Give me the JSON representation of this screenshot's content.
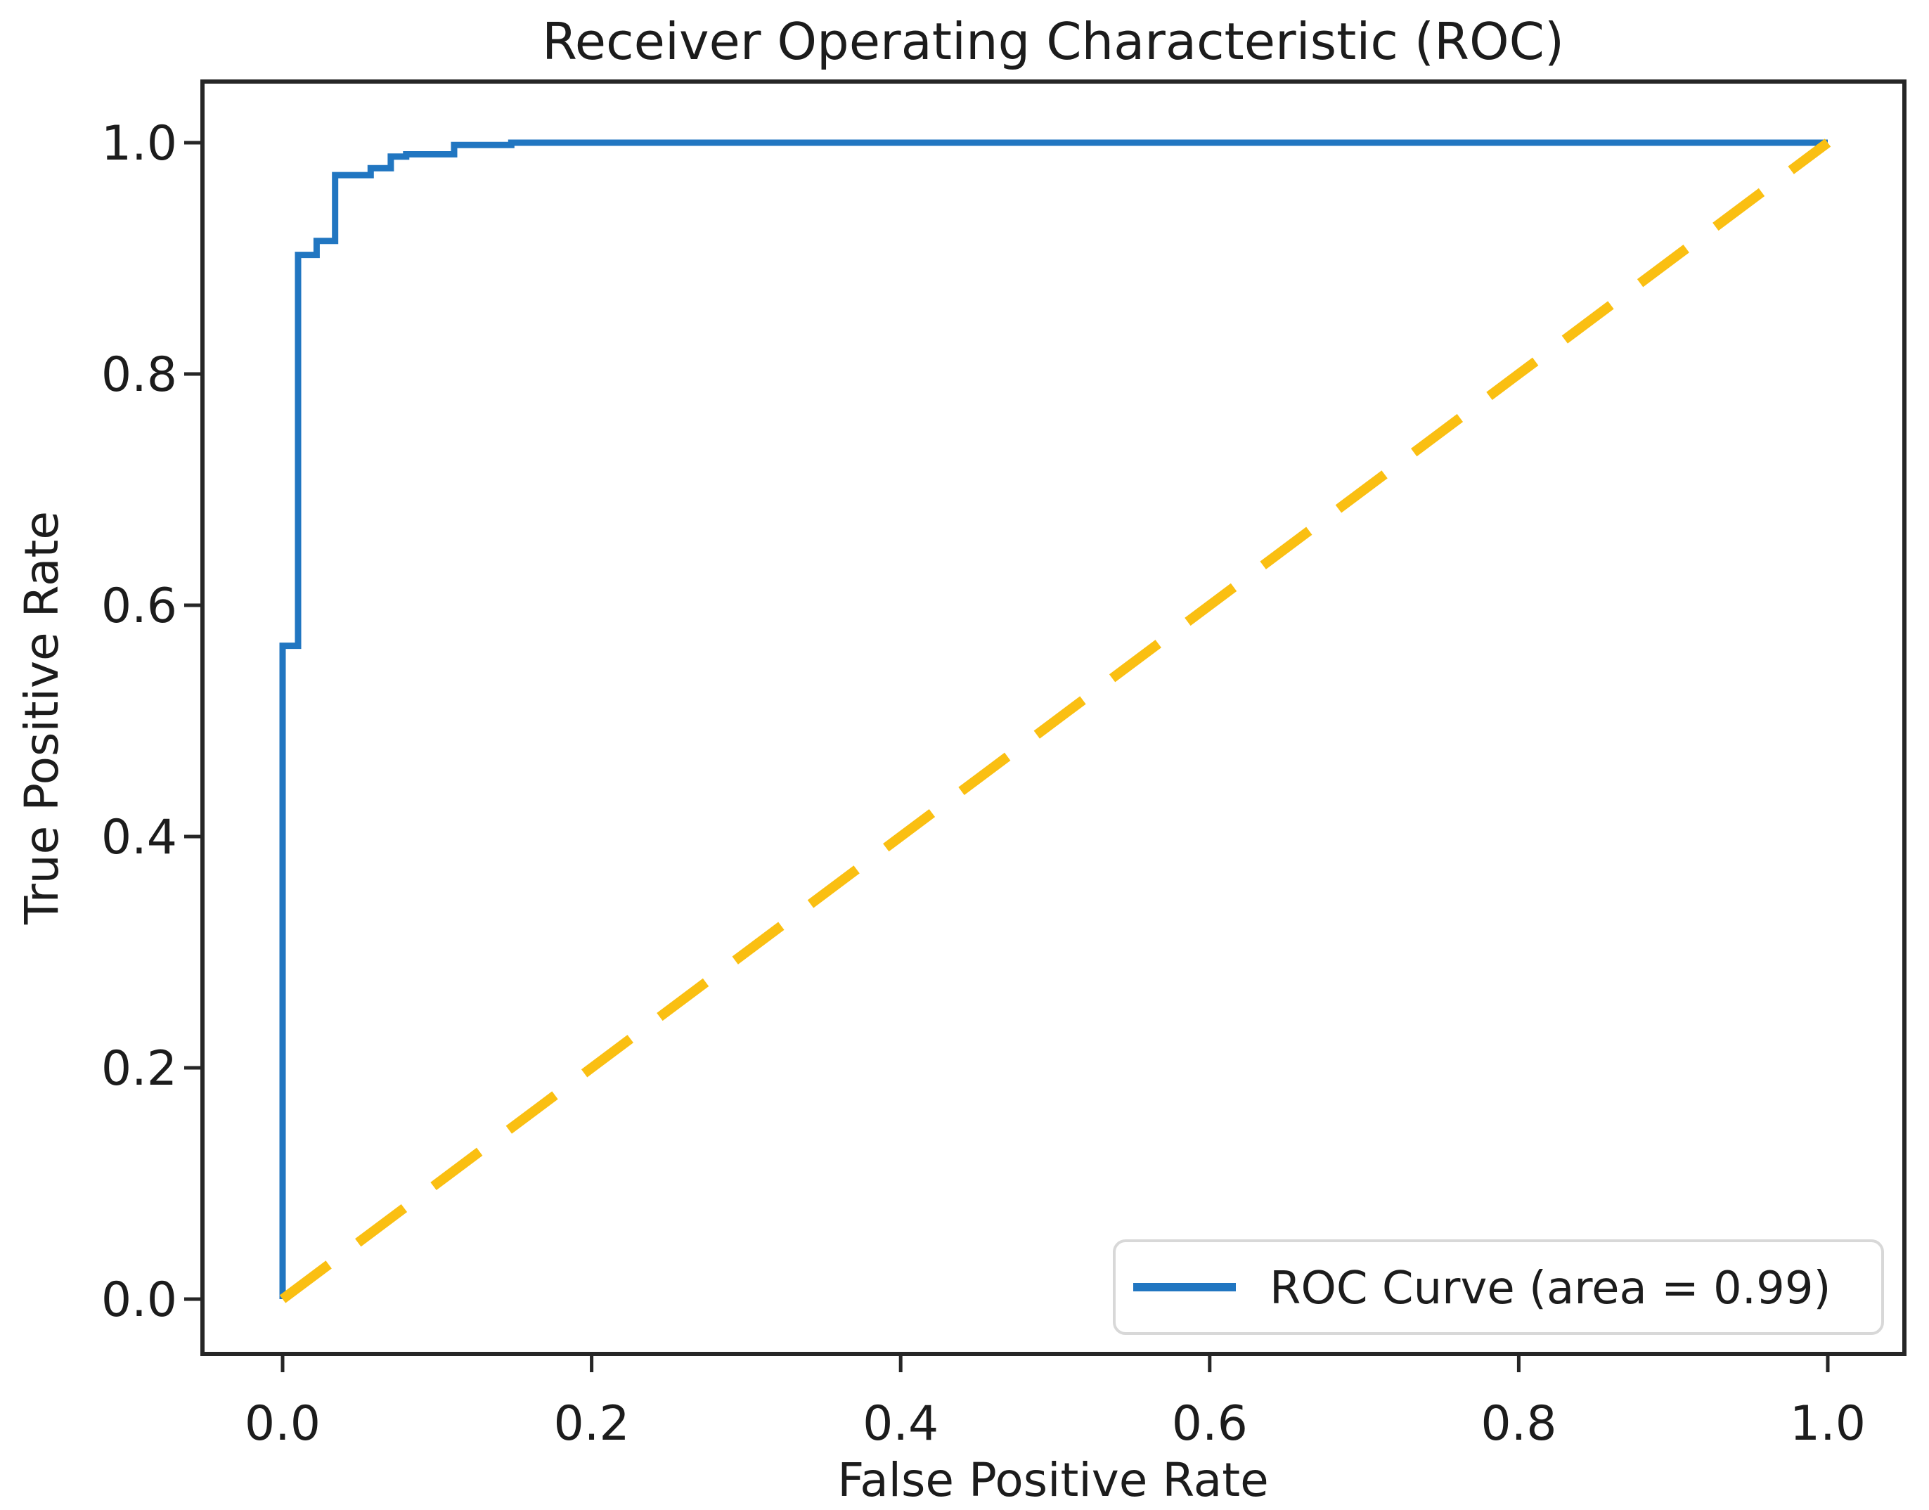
{
  "figure": {
    "background": "#ffffff",
    "spine_color": "#262626",
    "text_color": "#1c1c1c"
  },
  "chart_data": {
    "type": "line",
    "title": "Receiver Operating Characteristic (ROC)",
    "xlabel": "False Positive Rate",
    "ylabel": "True Positive Rate",
    "xlim": [
      0.0,
      1.0
    ],
    "ylim": [
      0.0,
      1.0
    ],
    "grid": false,
    "x_ticks": [
      {
        "value": 0.0,
        "label": "0.0"
      },
      {
        "value": 0.2,
        "label": "0.2"
      },
      {
        "value": 0.4,
        "label": "0.4"
      },
      {
        "value": 0.6,
        "label": "0.6"
      },
      {
        "value": 0.8,
        "label": "0.8"
      },
      {
        "value": 1.0,
        "label": "1.0"
      }
    ],
    "y_ticks": [
      {
        "value": 0.0,
        "label": "0.0"
      },
      {
        "value": 0.2,
        "label": "0.2"
      },
      {
        "value": 0.4,
        "label": "0.4"
      },
      {
        "value": 0.6,
        "label": "0.6"
      },
      {
        "value": 0.8,
        "label": "0.8"
      },
      {
        "value": 1.0,
        "label": "1.0"
      }
    ],
    "legend": {
      "position": "lower right",
      "entries": [
        {
          "label": "ROC Curve (area = 0.99)",
          "color": "#2176c1",
          "style": "solid"
        }
      ]
    },
    "series": [
      {
        "name": "ROC Curve (area = 0.99)",
        "role": "roc",
        "type": "step",
        "color": "#2176c1",
        "auc": 0.99,
        "points": [
          [
            0.0,
            0.0
          ],
          [
            0.0,
            0.565
          ],
          [
            0.01,
            0.565
          ],
          [
            0.01,
            0.903
          ],
          [
            0.022,
            0.903
          ],
          [
            0.022,
            0.915
          ],
          [
            0.034,
            0.915
          ],
          [
            0.034,
            0.972
          ],
          [
            0.057,
            0.972
          ],
          [
            0.057,
            0.978
          ],
          [
            0.07,
            0.978
          ],
          [
            0.07,
            0.988
          ],
          [
            0.08,
            0.988
          ],
          [
            0.08,
            0.99
          ],
          [
            0.111,
            0.99
          ],
          [
            0.111,
            0.998
          ],
          [
            0.148,
            0.998
          ],
          [
            0.148,
            1.0
          ],
          [
            1.0,
            1.0
          ]
        ]
      },
      {
        "name": "chance-diagonal",
        "role": "chance",
        "type": "dashed",
        "color": "#FABF12",
        "points": [
          [
            0.0,
            0.0
          ],
          [
            1.0,
            1.0
          ]
        ]
      }
    ]
  }
}
